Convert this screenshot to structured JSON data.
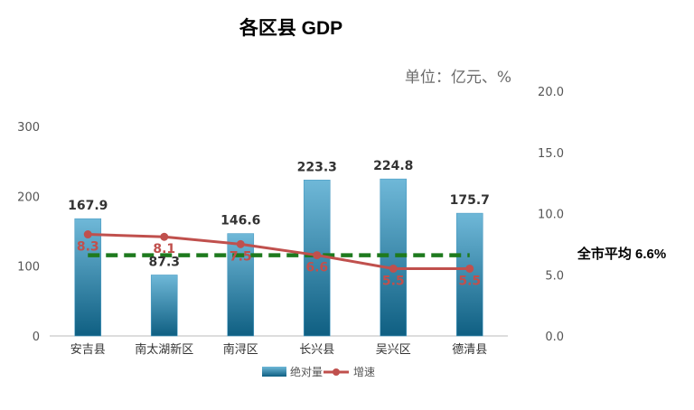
{
  "chart_data": {
    "type": "bar",
    "title": "各区县 GDP",
    "unit_label": "单位：亿元、%",
    "categories": [
      "安吉县",
      "南太湖新区",
      "南浔区",
      "长兴县",
      "吴兴区",
      "德清县"
    ],
    "series": [
      {
        "name": "绝对量",
        "type": "bar",
        "axis": "left",
        "values": [
          167.9,
          87.3,
          146.6,
          223.3,
          224.8,
          175.7
        ],
        "labels": [
          "167.9",
          "87.3",
          "146.6",
          "223.3",
          "224.8",
          "175.7"
        ]
      },
      {
        "name": "增速",
        "type": "line",
        "axis": "right",
        "values": [
          8.3,
          8.1,
          7.5,
          6.6,
          5.5,
          5.5
        ],
        "labels": [
          "8.3",
          "8.1",
          "7.5",
          "6.6",
          "5.5",
          "5.5"
        ]
      }
    ],
    "left_axis": {
      "ylim": [
        0,
        300
      ],
      "ticks": [
        "0",
        "100",
        "200",
        "300"
      ]
    },
    "right_axis": {
      "ylim": [
        0,
        20
      ],
      "ticks": [
        "0.0",
        "5.0",
        "10.0",
        "15.0",
        "20.0"
      ]
    },
    "average_line": {
      "value": 6.6,
      "axis": "right",
      "label": "全市平均 6.6%",
      "color": "#1e7a1e",
      "style": "dashed"
    },
    "legend_position": "bottom",
    "colors": {
      "bar_top": "#6fb8d8",
      "bar_bottom": "#0f5f82",
      "line": "#c0504d"
    }
  }
}
